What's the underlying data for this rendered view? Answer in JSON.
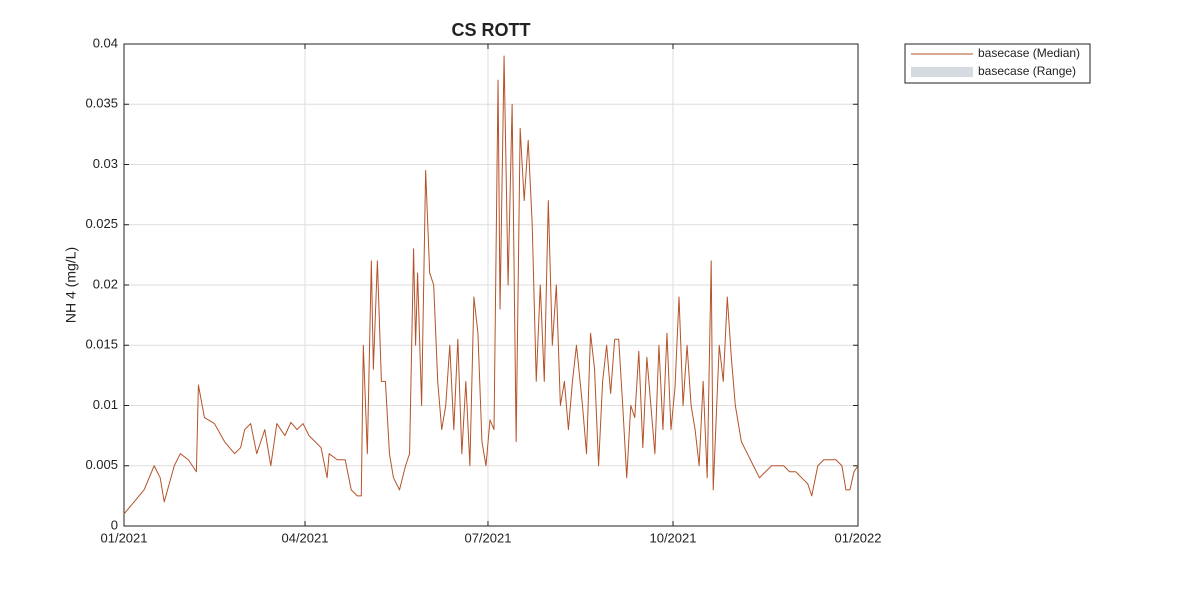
{
  "chart_data": {
    "type": "line",
    "title": "CS ROTT",
    "y_label": "NH 4 (mg/L)",
    "xlim": [
      0,
      365
    ],
    "xticks": [
      {
        "value": 0,
        "label": "01/2021"
      },
      {
        "value": 90,
        "label": "04/2021"
      },
      {
        "value": 181,
        "label": "07/2021"
      },
      {
        "value": 273,
        "label": "10/2021"
      },
      {
        "value": 365,
        "label": "01/2022"
      }
    ],
    "ylim": [
      0,
      0.04
    ],
    "yticks": [
      0,
      0.005,
      0.01,
      0.015,
      0.02,
      0.025,
      0.03,
      0.035,
      0.04
    ],
    "grid": true,
    "legend": "outside-top-right",
    "x": [
      0,
      5,
      10,
      15,
      18,
      20,
      25,
      28,
      32,
      36,
      37,
      40,
      45,
      50,
      55,
      58,
      60,
      63,
      66,
      70,
      73,
      76,
      80,
      83,
      86,
      89,
      92,
      95,
      98,
      101,
      102,
      106,
      110,
      113,
      116,
      118,
      119,
      121,
      123,
      124,
      126,
      128,
      130,
      132,
      134,
      137,
      140,
      142,
      144,
      145,
      146,
      148,
      150,
      152,
      154,
      156,
      158,
      160,
      162,
      164,
      166,
      168,
      170,
      172,
      174,
      176,
      178,
      180,
      182,
      184,
      186,
      187,
      189,
      191,
      193,
      195,
      197,
      199,
      201,
      203,
      205,
      207,
      209,
      211,
      213,
      215,
      217,
      219,
      221,
      223,
      225,
      228,
      230,
      232,
      234,
      236,
      238,
      240,
      242,
      244,
      246,
      248,
      250,
      252,
      254,
      256,
      258,
      260,
      262,
      264,
      266,
      268,
      270,
      272,
      274,
      276,
      278,
      280,
      282,
      284,
      286,
      288,
      290,
      292,
      293,
      296,
      298,
      300,
      302,
      304,
      307,
      310,
      313,
      316,
      319,
      322,
      325,
      328,
      331,
      334,
      337,
      340,
      342,
      345,
      348,
      351,
      354,
      357,
      359,
      361,
      363,
      365
    ],
    "series": [
      {
        "name": "basecase (Median)",
        "color": "#b5532a",
        "values": [
          0.001,
          0.002,
          0.003,
          0.005,
          0.004,
          0.002,
          0.005,
          0.006,
          0.0055,
          0.0045,
          0.0117,
          0.009,
          0.0085,
          0.007,
          0.006,
          0.0065,
          0.008,
          0.0085,
          0.006,
          0.008,
          0.005,
          0.0085,
          0.0075,
          0.0086,
          0.008,
          0.0085,
          0.0075,
          0.007,
          0.0065,
          0.004,
          0.006,
          0.0055,
          0.0055,
          0.003,
          0.0025,
          0.0025,
          0.015,
          0.006,
          0.022,
          0.013,
          0.022,
          0.012,
          0.012,
          0.006,
          0.004,
          0.003,
          0.005,
          0.006,
          0.023,
          0.015,
          0.021,
          0.01,
          0.0295,
          0.021,
          0.02,
          0.012,
          0.008,
          0.01,
          0.015,
          0.008,
          0.0155,
          0.006,
          0.012,
          0.005,
          0.019,
          0.016,
          0.007,
          0.005,
          0.0088,
          0.008,
          0.037,
          0.018,
          0.039,
          0.02,
          0.035,
          0.007,
          0.033,
          0.027,
          0.032,
          0.025,
          0.012,
          0.02,
          0.012,
          0.027,
          0.015,
          0.02,
          0.01,
          0.012,
          0.008,
          0.012,
          0.015,
          0.01,
          0.006,
          0.016,
          0.013,
          0.005,
          0.012,
          0.015,
          0.011,
          0.0155,
          0.0155,
          0.01,
          0.004,
          0.01,
          0.009,
          0.0145,
          0.0065,
          0.014,
          0.01,
          0.006,
          0.015,
          0.008,
          0.016,
          0.008,
          0.0115,
          0.019,
          0.01,
          0.015,
          0.01,
          0.008,
          0.005,
          0.012,
          0.004,
          0.022,
          0.003,
          0.015,
          0.012,
          0.019,
          0.014,
          0.01,
          0.007,
          0.006,
          0.005,
          0.004,
          0.0045,
          0.005,
          0.005,
          0.005,
          0.0045,
          0.0045,
          0.004,
          0.0035,
          0.0025,
          0.005,
          0.0055,
          0.0055,
          0.0055,
          0.005,
          0.003,
          0.003,
          0.0045,
          0.005
        ]
      },
      {
        "name": "basecase (Range)",
        "color": "#d5dbe0"
      }
    ]
  }
}
